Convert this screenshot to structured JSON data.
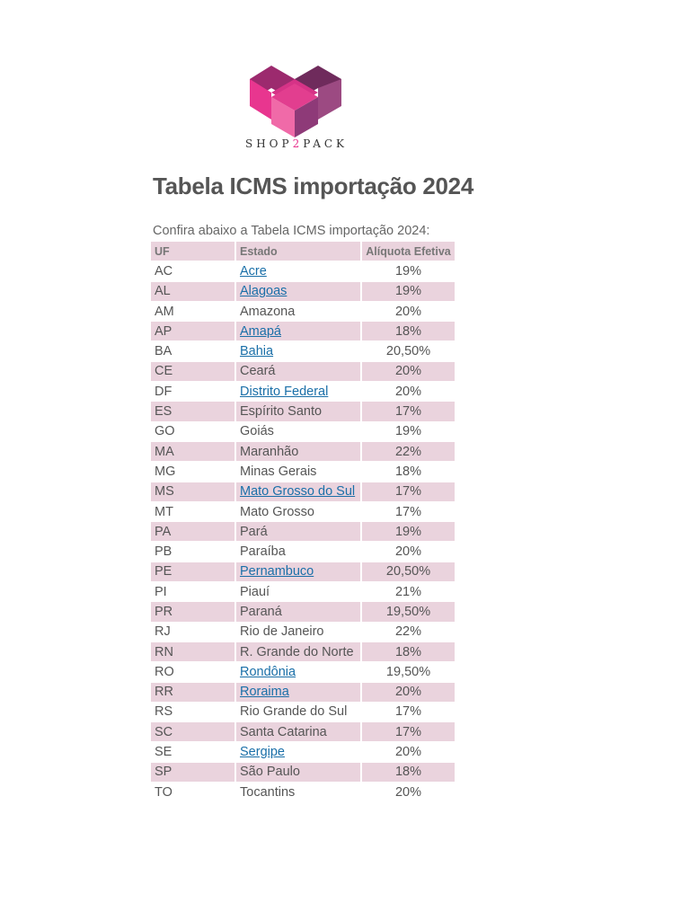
{
  "brand": {
    "prefix": "SHOP",
    "two": "2",
    "suffix": "PACK",
    "colors": [
      "#e8368f",
      "#9c2a6e",
      "#6f2b5c",
      "#f06aa8"
    ]
  },
  "title": "Tabela ICMS importação 2024",
  "intro": "Confira abaixo a Tabela ICMS importação 2024:",
  "table": {
    "headers": [
      "UF",
      "Estado",
      "Alíquota Efetiva"
    ],
    "rows": [
      {
        "uf": "AC",
        "estado": "Acre",
        "aliquota": "19%",
        "link": true
      },
      {
        "uf": "AL",
        "estado": "Alagoas",
        "aliquota": "19%",
        "link": true
      },
      {
        "uf": "AM",
        "estado": "Amazona",
        "aliquota": "20%",
        "link": false
      },
      {
        "uf": "AP",
        "estado": "Amapá",
        "aliquota": "18%",
        "link": true
      },
      {
        "uf": "BA",
        "estado": "Bahia",
        "aliquota": "20,50%",
        "link": true
      },
      {
        "uf": "CE",
        "estado": "Ceará",
        "aliquota": "20%",
        "link": false
      },
      {
        "uf": "DF",
        "estado": "Distrito Federal",
        "aliquota": "20%",
        "link": true
      },
      {
        "uf": "ES",
        "estado": "Espírito Santo",
        "aliquota": "17%",
        "link": false
      },
      {
        "uf": "GO",
        "estado": "Goiás",
        "aliquota": "19%",
        "link": false
      },
      {
        "uf": "MA",
        "estado": "Maranhão",
        "aliquota": "22%",
        "link": false
      },
      {
        "uf": "MG",
        "estado": "Minas Gerais",
        "aliquota": "18%",
        "link": false
      },
      {
        "uf": "MS",
        "estado": "Mato Grosso do Sul",
        "aliquota": "17%",
        "link": true
      },
      {
        "uf": "MT",
        "estado": "Mato Grosso",
        "aliquota": "17%",
        "link": false
      },
      {
        "uf": "PA",
        "estado": "Pará",
        "aliquota": "19%",
        "link": false
      },
      {
        "uf": "PB",
        "estado": "Paraíba",
        "aliquota": "20%",
        "link": false
      },
      {
        "uf": "PE",
        "estado": "Pernambuco",
        "aliquota": "20,50%",
        "link": true
      },
      {
        "uf": "PI",
        "estado": "Piauí",
        "aliquota": "21%",
        "link": false
      },
      {
        "uf": "PR",
        "estado": "Paraná",
        "aliquota": "19,50%",
        "link": false
      },
      {
        "uf": "RJ",
        "estado": "Rio de Janeiro",
        "aliquota": "22%",
        "link": false
      },
      {
        "uf": "RN",
        "estado": "R. Grande do Norte",
        "aliquota": "18%",
        "link": false
      },
      {
        "uf": "RO",
        "estado": "Rondônia",
        "aliquota": "19,50%",
        "link": true
      },
      {
        "uf": "RR",
        "estado": "Roraima",
        "aliquota": "20%",
        "link": true
      },
      {
        "uf": "RS",
        "estado": "Rio Grande do Sul",
        "aliquota": "17%",
        "link": false
      },
      {
        "uf": "SC",
        "estado": "Santa Catarina",
        "aliquota": "17%",
        "link": false
      },
      {
        "uf": "SE",
        "estado": "Sergipe",
        "aliquota": "20%",
        "link": true
      },
      {
        "uf": "SP",
        "estado": "São Paulo",
        "aliquota": "18%",
        "link": false
      },
      {
        "uf": "TO",
        "estado": "Tocantins",
        "aliquota": "20%",
        "link": false
      }
    ]
  }
}
